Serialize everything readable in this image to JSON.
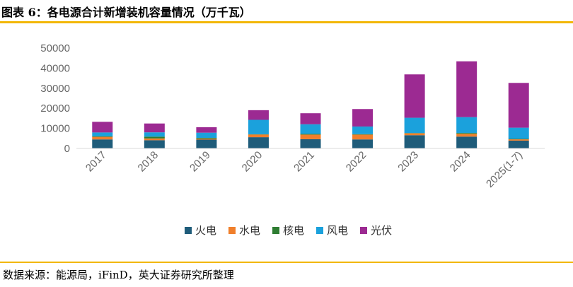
{
  "title": "图表 6：各电源合计新增装机容量情况（万千瓦）",
  "source": "数据来源：能源局，iFinD，英大证券研究所整理",
  "colors": {
    "accent": "#f2b705"
  },
  "chart_data": {
    "type": "bar",
    "stacked": true,
    "categories": [
      "2017",
      "2018",
      "2019",
      "2020",
      "2021",
      "2022",
      "2023",
      "2024",
      "2025(1-7)"
    ],
    "series": [
      {
        "name": "火电",
        "color": "#1f5c7a",
        "values": [
          4500,
          4100,
          4400,
          5600,
          4600,
          4500,
          6600,
          5900,
          3900
        ]
      },
      {
        "name": "水电",
        "color": "#f07f2b",
        "values": [
          1300,
          900,
          450,
          1350,
          2300,
          2400,
          950,
          1400,
          650
        ]
      },
      {
        "name": "核电",
        "color": "#2e7d32",
        "values": [
          220,
          880,
          410,
          110,
          340,
          230,
          140,
          400,
          200
        ]
      },
      {
        "name": "风电",
        "color": "#1ba1dc",
        "values": [
          1950,
          2150,
          2600,
          7200,
          4800,
          3800,
          7600,
          7900,
          5600
        ]
      },
      {
        "name": "光伏",
        "color": "#9c2a92",
        "values": [
          5300,
          4400,
          2700,
          4800,
          5500,
          8700,
          21600,
          27800,
          22300
        ]
      }
    ],
    "ylim": [
      0,
      50000
    ],
    "yticks": [
      "0",
      "10000",
      "20000",
      "30000",
      "40000",
      "50000"
    ],
    "grid": false,
    "legend_position": "bottom"
  }
}
